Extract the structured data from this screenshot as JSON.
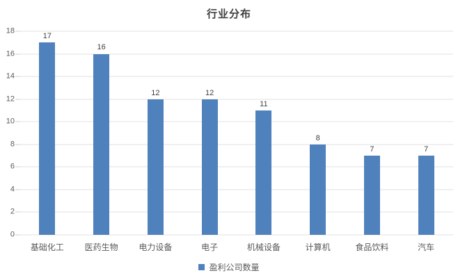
{
  "chart_data": {
    "type": "bar",
    "title": "行业分布",
    "categories": [
      "基础化工",
      "医药生物",
      "电力设备",
      "电子",
      "机械设备",
      "计算机",
      "食品饮料",
      "汽车"
    ],
    "series": [
      {
        "name": "盈利公司数量",
        "values": [
          17,
          16,
          12,
          12,
          11,
          8,
          7,
          7
        ]
      }
    ],
    "ylabel": "",
    "xlabel": "",
    "ylim": [
      0,
      18
    ],
    "ytick_step": 2,
    "grid": true,
    "data_labels": true,
    "legend_position": "bottom",
    "colors": {
      "bar": "#4f81bd",
      "gridline": "#e2e2e2",
      "tick": "#cfcfcf",
      "title_text": "#3f3f3f",
      "value_text": "#404040",
      "axis_text": "#595959"
    }
  }
}
